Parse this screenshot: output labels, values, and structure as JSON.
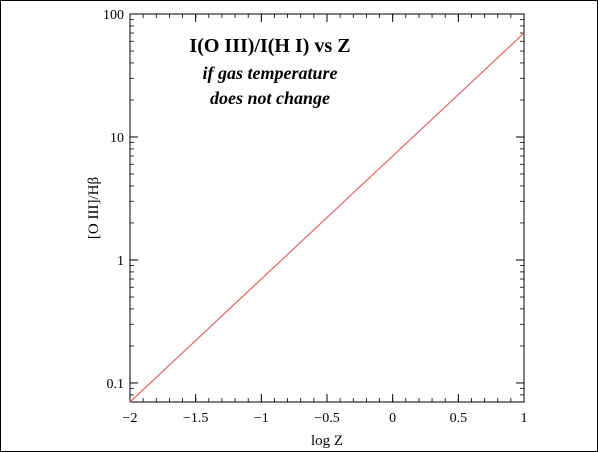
{
  "chart_data": {
    "type": "line",
    "title": "I(O III)/I(H I) vs Z",
    "subtitle_lines": [
      "if gas temperature",
      "does not change"
    ],
    "xlabel": "log Z",
    "ylabel": "[O III]/Hβ",
    "xlim": [
      -2,
      1
    ],
    "ylim": [
      0.07,
      100
    ],
    "y_scale": "log",
    "x_ticks": [
      -2,
      -1.5,
      -1,
      -0.5,
      0,
      0.5,
      1
    ],
    "x_tick_labels": [
      "−2",
      "−1.5",
      "−1",
      "−0.5",
      "0",
      "0.5",
      "1"
    ],
    "y_ticks": [
      0.1,
      1,
      10,
      100
    ],
    "y_tick_labels": [
      "0.1",
      "1",
      "10",
      "100"
    ],
    "series": [
      {
        "x": [
          -2,
          1
        ],
        "y": [
          0.07,
          70
        ],
        "color": "#e07070"
      }
    ],
    "grid": false
  }
}
